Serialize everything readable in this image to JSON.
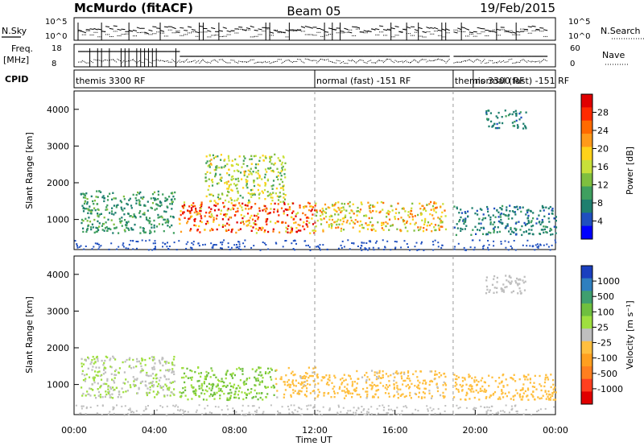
{
  "header": {
    "station": "McMurdo (fitACF)",
    "beam": "Beam 05",
    "date": "19/Feb/2015"
  },
  "status_panel": {
    "nsky_label": "N.Sky",
    "nsky_ticks": [
      "10^5",
      "10^0"
    ],
    "nsearch_label": "N.Search",
    "nsearch_ticks": [
      "10^5",
      "10^0"
    ],
    "freq_label_1": "Freq.",
    "freq_label_2": "[MHz]",
    "freq_ticks": [
      "18",
      "8"
    ],
    "nave_label": "Nave",
    "nave_ticks": [
      "60",
      "0"
    ],
    "cpid_label": "CPID",
    "cpid_segments": [
      {
        "start_hour": 0.0,
        "label": "themis 3300 RF"
      },
      {
        "start_hour": 12.0,
        "label": "normal (fast) -151 RF"
      },
      {
        "start_hour": 18.9,
        "label": "themis 3300 RF"
      },
      {
        "start_hour": 19.9,
        "label": "normal (fast) -151 RF"
      }
    ]
  },
  "panels": {
    "power": {
      "ylabel": "Slant Range [km]",
      "cbar_label": "Power [dB]",
      "cbar_ticks": [
        "28",
        "24",
        "20",
        "16",
        "12",
        "8",
        "4"
      ],
      "cbar_colors": [
        "#e00000",
        "#ff2a00",
        "#ff6a00",
        "#ff9a1a",
        "#ffd21a",
        "#c8e03a",
        "#7fbf3f",
        "#3f9f5f",
        "#1f7f6f",
        "#1f4fbf",
        "#0000ff"
      ]
    },
    "velocity": {
      "ylabel": "Slant Range [km]",
      "cbar_label": "Velocity [m s⁻¹]",
      "cbar_ticks": [
        "1000",
        "500",
        "100",
        "25",
        "-25",
        "-100",
        "-500",
        "-1000"
      ],
      "cbar_colors": [
        "#1a3fbf",
        "#2f7fbf",
        "#3f9f6f",
        "#6fbf3f",
        "#9fdf3f",
        "#bfbfbf",
        "#ffbf3f",
        "#ff9f1f",
        "#ff7f1f",
        "#ff3f1f",
        "#e00000"
      ]
    }
  },
  "xaxis": {
    "label": "Time UT",
    "ticks": [
      "00:00",
      "04:00",
      "08:00",
      "12:00",
      "16:00",
      "20:00",
      "00:00"
    ]
  },
  "chart_data": [
    {
      "type": "heatmap",
      "title": "Power",
      "xlabel": "Time UT",
      "ylabel": "Slant Range [km]",
      "xlim_hours": [
        0,
        24
      ],
      "ylim_km": [
        180,
        4500
      ],
      "yticks": [
        1000,
        2000,
        3000,
        4000
      ],
      "color_scale": "Power [dB]",
      "color_range": [
        0,
        30
      ],
      "echo_regions": [
        {
          "t0": 0.3,
          "t1": 5.0,
          "r0": 650,
          "r1": 1800,
          "value": 8
        },
        {
          "t0": 5.2,
          "t1": 12.0,
          "r0": 650,
          "r1": 1500,
          "value": 24
        },
        {
          "t0": 6.5,
          "t1": 10.5,
          "r0": 1500,
          "r1": 2800,
          "value": 14
        },
        {
          "t0": 12.0,
          "t1": 18.5,
          "r0": 700,
          "r1": 1500,
          "value": 18
        },
        {
          "t0": 18.9,
          "t1": 24.0,
          "r0": 600,
          "r1": 1400,
          "value": 6
        },
        {
          "t0": 20.5,
          "t1": 22.5,
          "r0": 3500,
          "r1": 4000,
          "value": 6
        }
      ]
    },
    {
      "type": "heatmap",
      "title": "Velocity",
      "xlabel": "Time UT",
      "ylabel": "Slant Range [km]",
      "xlim_hours": [
        0,
        24
      ],
      "ylim_km": [
        180,
        4500
      ],
      "yticks": [
        1000,
        2000,
        3000,
        4000
      ],
      "color_scale": "Velocity [m s⁻¹]",
      "color_range": [
        -1000,
        1000
      ],
      "echo_regions": [
        {
          "t0": 0.3,
          "t1": 5.0,
          "r0": 650,
          "r1": 1800,
          "value": 100
        },
        {
          "t0": 5.2,
          "t1": 10.0,
          "r0": 600,
          "r1": 1500,
          "value": 300
        },
        {
          "t0": 10.0,
          "t1": 12.0,
          "r0": 650,
          "r1": 1500,
          "value": -150
        },
        {
          "t0": 12.0,
          "t1": 14.0,
          "r0": 650,
          "r1": 1300,
          "value": -200
        },
        {
          "t0": 14.0,
          "t1": 18.5,
          "r0": 650,
          "r1": 1400,
          "value": -150
        },
        {
          "t0": 18.9,
          "t1": 24.0,
          "r0": 600,
          "r1": 1300,
          "value": -200
        },
        {
          "t0": 20.5,
          "t1": 22.5,
          "r0": 3500,
          "r1": 4000,
          "value": 20
        }
      ]
    }
  ]
}
